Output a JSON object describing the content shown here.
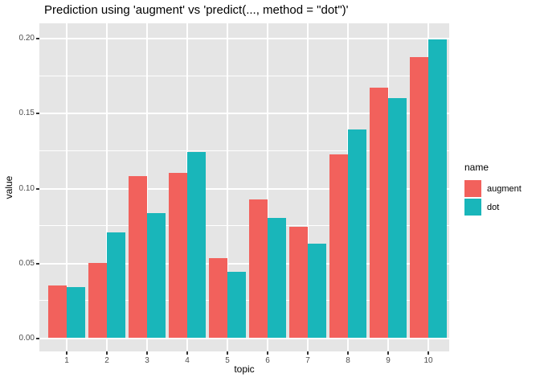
{
  "title": "Prediction using 'augment' vs 'predict(..., method = \"dot\")'",
  "chart_data": {
    "type": "bar",
    "title": "Prediction using 'augment' vs 'predict(..., method = \"dot\")'",
    "xlabel": "topic",
    "ylabel": "value",
    "categories": [
      "1",
      "2",
      "3",
      "4",
      "5",
      "6",
      "7",
      "8",
      "9",
      "10"
    ],
    "series": [
      {
        "name": "augment",
        "color": "#F2615C",
        "values": [
          0.035,
          0.05,
          0.108,
          0.11,
          0.053,
          0.092,
          0.074,
          0.122,
          0.167,
          0.187
        ]
      },
      {
        "name": "dot",
        "color": "#19B6BA",
        "values": [
          0.034,
          0.07,
          0.083,
          0.124,
          0.044,
          0.08,
          0.063,
          0.139,
          0.16,
          0.199
        ]
      }
    ],
    "ylim": [
      0,
      0.2
    ],
    "yticks": [
      0,
      0.05,
      0.1,
      0.15,
      0.2
    ],
    "ytick_labels": [
      "0.00",
      "0.05",
      "0.10",
      "0.15",
      "0.20"
    ],
    "grid": true,
    "legend_title": "name",
    "legend_position": "right",
    "panel_background": "#E5E5E5",
    "gridline_color": "#FFFFFF"
  }
}
